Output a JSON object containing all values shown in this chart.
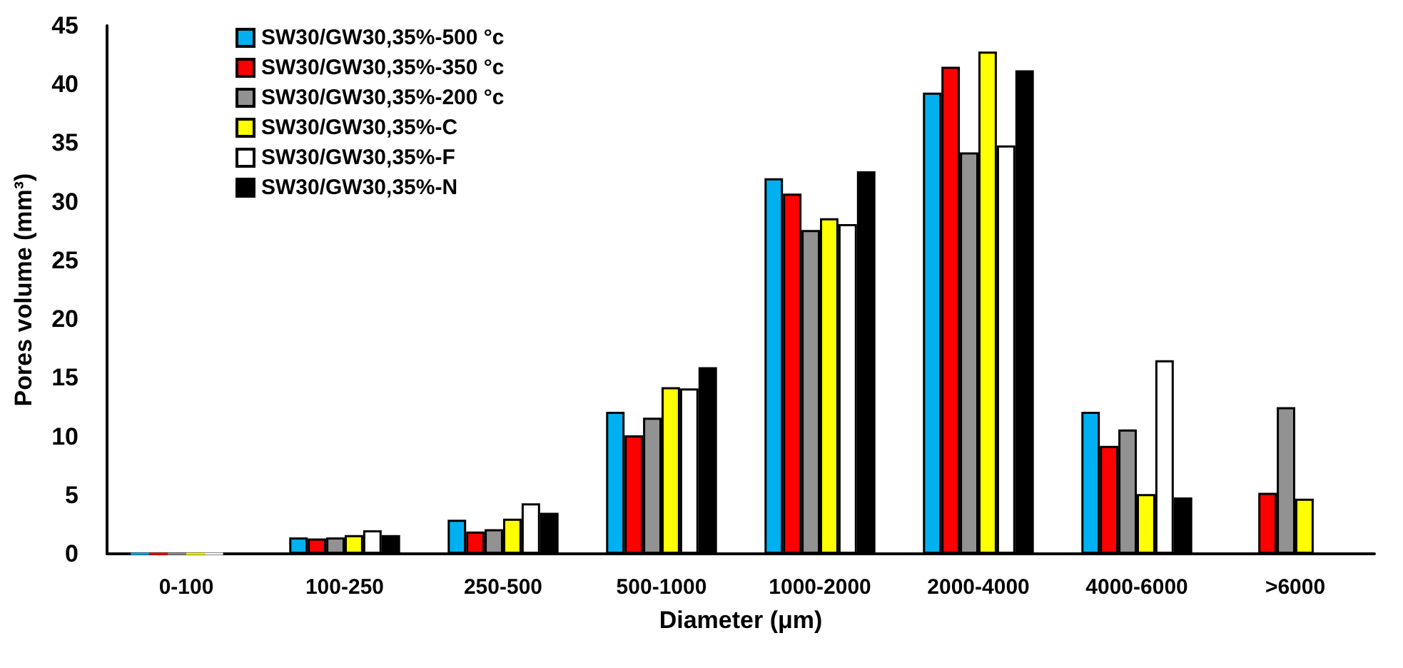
{
  "chart_data": {
    "type": "bar",
    "xlabel": "Diameter (μm)",
    "ylabel": "Pores volume (mm³)",
    "categories": [
      "0-100",
      "100-250",
      "250-500",
      "500-1000",
      "1000-2000",
      "2000-4000",
      "4000-6000",
      ">6000"
    ],
    "series": [
      {
        "name": "SW30/GW30,35%-500 °c",
        "color": "#00b0f0",
        "values": [
          0,
          1.4,
          2.9,
          12.1,
          32,
          39.3,
          12.1,
          null
        ]
      },
      {
        "name": "SW30/GW30,35%-350 °c",
        "color": "#ff0000",
        "values": [
          0,
          1.3,
          1.9,
          10.1,
          30.7,
          41.5,
          9.2,
          5.2
        ]
      },
      {
        "name": "SW30/GW30,35%-200 °c",
        "color": "#929292",
        "values": [
          0,
          1.4,
          2.1,
          11.6,
          27.6,
          34.2,
          10.6,
          12.5
        ]
      },
      {
        "name": "SW30/GW30,35%-C",
        "color": "#ffff00",
        "values": [
          0,
          1.6,
          3.0,
          14.2,
          28.6,
          42.8,
          5.1,
          4.7
        ]
      },
      {
        "name": "SW30/GW30,35%-F",
        "color": "#ffffff",
        "values": [
          0,
          2.0,
          4.3,
          14.1,
          28.1,
          34.8,
          16.5,
          null
        ]
      },
      {
        "name": "SW30/GW30,35%-N",
        "color": "#000000",
        "values": [
          0,
          1.6,
          3.5,
          15.9,
          32.6,
          41.2,
          4.8,
          null
        ]
      }
    ],
    "ylim": [
      0,
      45
    ],
    "yticks": [
      0,
      5,
      10,
      15,
      20,
      25,
      30,
      35,
      40,
      45
    ],
    "grid": false,
    "legend": "top left"
  }
}
